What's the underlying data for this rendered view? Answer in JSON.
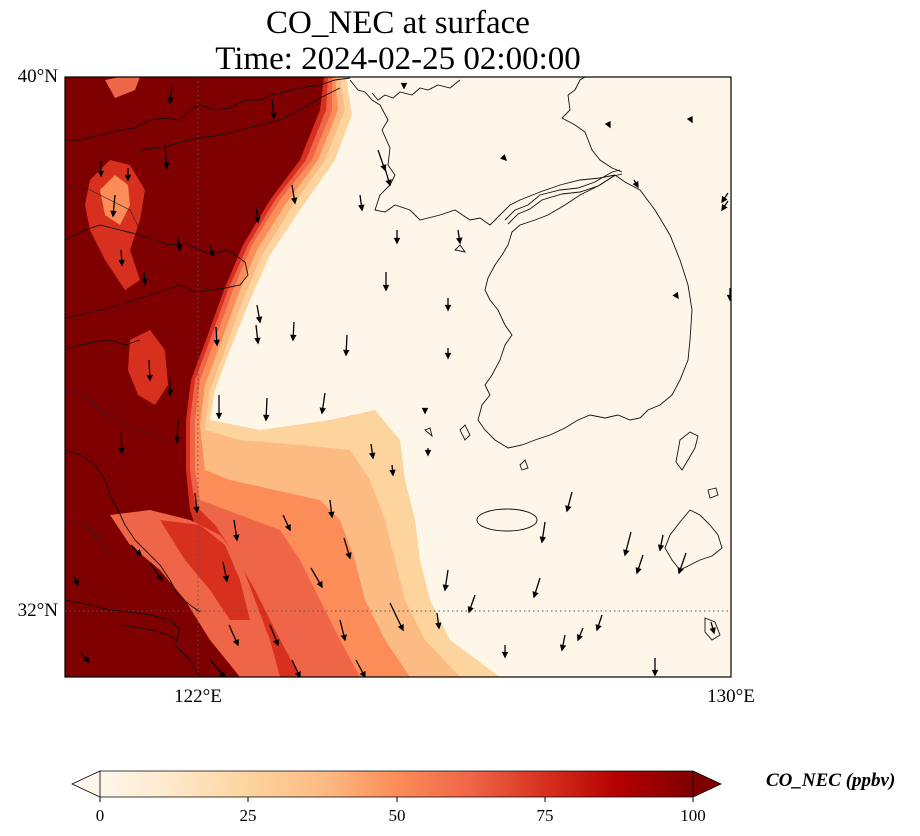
{
  "title": "CO_NEC at surface",
  "time": "Time: 2024-02-25 02:00:00",
  "lat_labels": [
    "40°N",
    "32°N"
  ],
  "lon_labels": [
    "122°E",
    "130°E"
  ],
  "colorbar": {
    "label": "CO_NEC (ppbv)",
    "ticks": [
      "0",
      "25",
      "50",
      "75",
      "100"
    ],
    "min": 0,
    "max": 100,
    "colormap": "OrRd",
    "extend": "both"
  },
  "extent": {
    "lon": [
      120,
      130
    ],
    "lat": [
      31,
      40
    ]
  },
  "gridlines": {
    "lon": [
      122
    ],
    "lat": [
      32
    ],
    "style": "dotted"
  },
  "field_description": {
    "high_region": "western land and coastal zone (CO_NEC > 100 ppbv)",
    "low_region": "Yellow Sea, Korea and East Sea (CO_NEC near 0 ppbv)"
  },
  "wind_vectors": "predominantly north-to-south flow"
}
